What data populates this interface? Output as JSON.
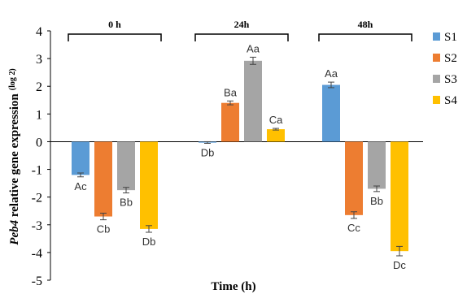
{
  "chart_data": {
    "type": "bar",
    "xlabel": "Time (h)",
    "ylabel": {
      "italic": "Peb4",
      "text": " relative gene expression",
      "unit": "(log 2)"
    },
    "ylim": [
      -5,
      4
    ],
    "yticks": [
      -5,
      -4,
      -3,
      -2,
      -1,
      0,
      1,
      2,
      3,
      4
    ],
    "groups": [
      "0 h",
      "24h",
      "48h"
    ],
    "series": [
      {
        "name": "S1",
        "color": "#5B9BD5",
        "values": [
          -1.2,
          -0.03,
          2.05
        ],
        "errors": [
          0.07,
          0.03,
          0.1
        ],
        "labels": [
          "Ac",
          "Db",
          "Aa"
        ]
      },
      {
        "name": "S2",
        "color": "#ED7D31",
        "values": [
          -2.7,
          1.4,
          -2.65
        ],
        "errors": [
          0.12,
          0.07,
          0.12
        ],
        "labels": [
          "Cb",
          "Ba",
          "Cc"
        ]
      },
      {
        "name": "S3",
        "color": "#A5A5A5",
        "values": [
          -1.75,
          2.92,
          -1.7
        ],
        "errors": [
          0.1,
          0.13,
          0.1
        ],
        "labels": [
          "Bb",
          "Aa",
          "Bb"
        ]
      },
      {
        "name": "S4",
        "color": "#FFC000",
        "values": [
          -3.15,
          0.45,
          -3.95
        ],
        "errors": [
          0.12,
          0.03,
          0.17
        ],
        "labels": [
          "Db",
          "Ca",
          "Dc"
        ]
      }
    ],
    "legend_position": "right",
    "grid": false
  }
}
